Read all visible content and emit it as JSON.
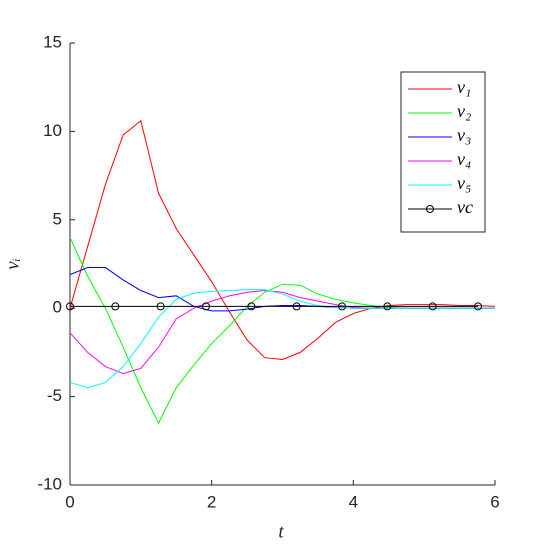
{
  "chart_data": {
    "type": "line",
    "xlabel": "t",
    "ylabel": "vᵢ",
    "x": [
      0,
      0.25,
      0.5,
      0.75,
      1,
      1.25,
      1.5,
      1.75,
      2,
      2.25,
      2.5,
      2.75,
      3,
      3.25,
      3.5,
      3.75,
      4,
      4.25,
      4.5,
      4.75,
      5,
      5.25,
      5.5,
      5.75,
      6
    ],
    "series": [
      {
        "name": "v₁",
        "color": "#ff0000",
        "values": [
          0,
          3.5,
          7,
          9.8,
          10.6,
          6.5,
          4.5,
          3,
          1.5,
          -0.2,
          -1.8,
          -2.8,
          -2.9,
          -2.5,
          -1.7,
          -0.8,
          -0.3,
          0,
          0.15,
          0.2,
          0.2,
          0.2,
          0.15,
          0.15,
          0.1
        ]
      },
      {
        "name": "v₂",
        "color": "#00ff00",
        "values": [
          4,
          1.8,
          0,
          -2.2,
          -4.5,
          -6.5,
          -4.5,
          -3.2,
          -2,
          -1,
          0.1,
          0.9,
          1.35,
          1.3,
          0.8,
          0.5,
          0.3,
          0.15,
          0.05,
          0,
          0,
          0,
          0,
          0,
          0
        ]
      },
      {
        "name": "v₃",
        "color": "#0000ff",
        "values": [
          1.9,
          2.3,
          2.3,
          1.6,
          1,
          0.6,
          0.7,
          0.1,
          -0.15,
          -0.15,
          -0.05,
          0.1,
          0.15,
          0.15,
          0.1,
          0.05,
          0,
          0,
          0,
          0,
          0,
          0,
          0,
          0,
          0
        ]
      },
      {
        "name": "v₄",
        "color": "#ff00ff",
        "values": [
          -1.4,
          -2.5,
          -3.3,
          -3.7,
          -3.4,
          -2.2,
          -0.6,
          0,
          0.4,
          0.7,
          0.9,
          1,
          0.9,
          0.6,
          0.4,
          0.2,
          0.05,
          0,
          0,
          0,
          0,
          0,
          0,
          0,
          0
        ]
      },
      {
        "name": "v₅",
        "color": "#00ffff",
        "values": [
          -4.2,
          -4.5,
          -4.2,
          -3.3,
          -2,
          -0.5,
          0.5,
          0.85,
          0.95,
          1,
          1.05,
          1.05,
          0.8,
          0.4,
          0.15,
          0.05,
          0,
          0,
          0,
          0,
          0,
          0,
          0,
          0,
          0
        ]
      },
      {
        "name": "vc",
        "color": "#000000",
        "marker": "circle",
        "x": [
          0,
          0.64,
          1.28,
          1.92,
          2.56,
          3.2,
          3.84,
          4.48,
          5.12,
          5.76
        ],
        "values": [
          0.1,
          0.1,
          0.1,
          0.1,
          0.1,
          0.1,
          0.1,
          0.1,
          0.1,
          0.1
        ]
      }
    ],
    "xlim": [
      0,
      6
    ],
    "ylim": [
      -10,
      15
    ],
    "xticks": [
      0,
      2,
      4,
      6
    ],
    "yticks": [
      -10,
      -5,
      0,
      5,
      10,
      15
    ],
    "legend": "top-right"
  }
}
